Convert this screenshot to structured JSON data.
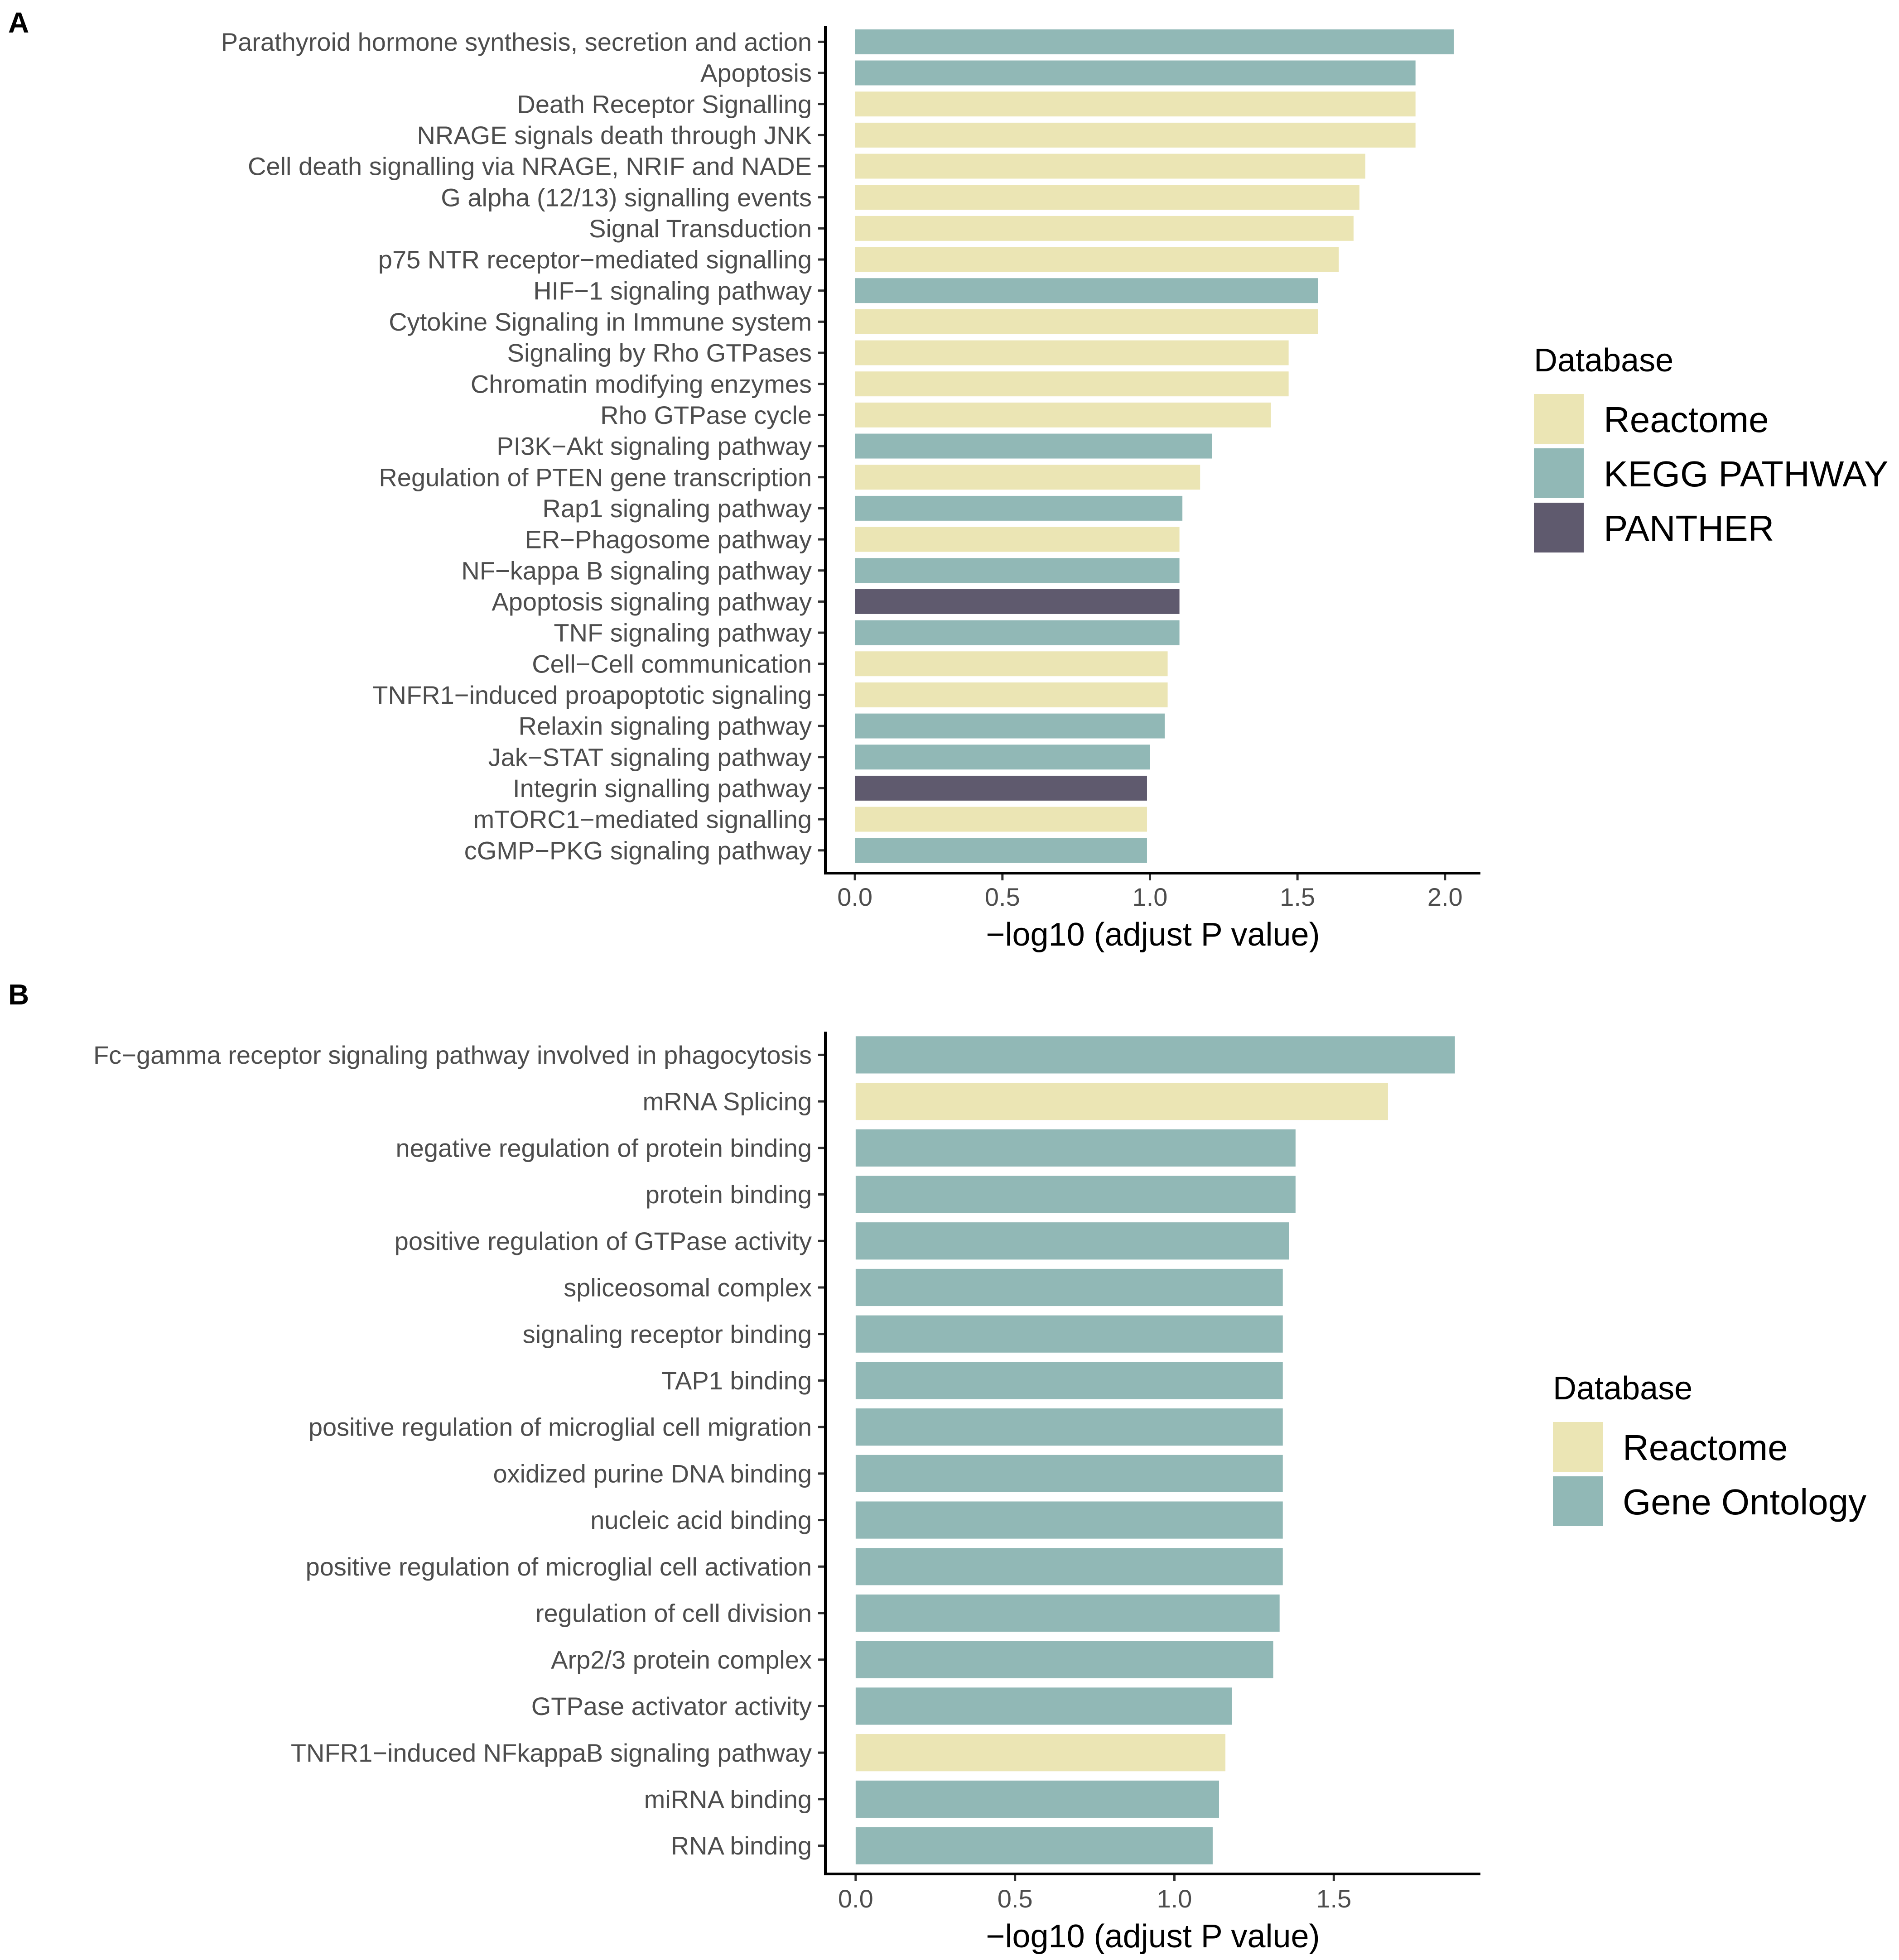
{
  "colors": {
    "Reactome": "#ebe5b4",
    "KEGG PATHWAY": "#91b8b6",
    "PANTHER": "#5f5a6e",
    "Gene Ontology": "#91b8b6",
    "axis": "#000000",
    "tick_label": "#4d4d4d",
    "title": "#000000"
  },
  "chart_data": [
    {
      "type": "bar",
      "orientation": "horizontal",
      "panel_label": "A",
      "xlabel": "−log10 (adjust P value)",
      "xlim": [
        -0.1,
        2.12
      ],
      "xticks": [
        0.0,
        0.5,
        1.0,
        1.5,
        2.0
      ],
      "xtick_labels": [
        "0.0",
        "0.5",
        "1.0",
        "1.5",
        "2.0"
      ],
      "legend_title": "Database",
      "legend_entries": [
        "Reactome",
        "KEGG PATHWAY",
        "PANTHER"
      ],
      "legend_position": "right",
      "categories": [
        "Parathyroid hormone synthesis, secretion and action",
        "Apoptosis",
        "Death Receptor Signalling",
        "NRAGE signals death through JNK",
        "Cell death signalling via NRAGE, NRIF and NADE",
        "G alpha (12/13) signalling events",
        "Signal Transduction",
        "p75 NTR receptor−mediated signalling",
        "HIF−1 signaling pathway",
        "Cytokine Signaling in Immune system",
        "Signaling by Rho GTPases",
        "Chromatin modifying enzymes",
        "Rho GTPase cycle",
        "PI3K−Akt signaling pathway",
        "Regulation of PTEN gene transcription",
        "Rap1 signaling pathway",
        "ER−Phagosome pathway",
        "NF−kappa B signaling pathway",
        "Apoptosis signaling pathway",
        "TNF signaling pathway",
        "Cell−Cell communication",
        "TNFR1−induced proapoptotic signaling",
        "Relaxin signaling pathway",
        "Jak−STAT signaling pathway",
        "Integrin signalling pathway",
        "mTORC1−mediated signalling",
        "cGMP−PKG signaling pathway"
      ],
      "values": [
        2.03,
        1.9,
        1.9,
        1.9,
        1.73,
        1.71,
        1.69,
        1.64,
        1.57,
        1.57,
        1.47,
        1.47,
        1.41,
        1.21,
        1.17,
        1.11,
        1.1,
        1.1,
        1.1,
        1.1,
        1.06,
        1.06,
        1.05,
        1.0,
        0.99,
        0.99,
        0.99
      ],
      "databases": [
        "KEGG PATHWAY",
        "KEGG PATHWAY",
        "Reactome",
        "Reactome",
        "Reactome",
        "Reactome",
        "Reactome",
        "Reactome",
        "KEGG PATHWAY",
        "Reactome",
        "Reactome",
        "Reactome",
        "Reactome",
        "KEGG PATHWAY",
        "Reactome",
        "KEGG PATHWAY",
        "Reactome",
        "KEGG PATHWAY",
        "PANTHER",
        "KEGG PATHWAY",
        "Reactome",
        "Reactome",
        "KEGG PATHWAY",
        "KEGG PATHWAY",
        "PANTHER",
        "Reactome",
        "KEGG PATHWAY"
      ]
    },
    {
      "type": "bar",
      "orientation": "horizontal",
      "panel_label": "B",
      "xlabel": "−log10 (adjust P value)",
      "xlim": [
        -0.095,
        1.96
      ],
      "xticks": [
        0.0,
        0.5,
        1.0,
        1.5
      ],
      "xtick_labels": [
        "0.0",
        "0.5",
        "1.0",
        "1.5"
      ],
      "legend_title": "Database",
      "legend_entries": [
        "Reactome",
        "Gene Ontology"
      ],
      "legend_position": "right",
      "categories": [
        "Fc−gamma receptor signaling pathway involved in phagocytosis",
        "mRNA Splicing",
        "negative regulation of protein binding",
        "protein binding",
        "positive regulation of GTPase activity",
        "spliceosomal complex",
        "signaling receptor binding",
        "TAP1 binding",
        "positive regulation of microglial cell migration",
        "oxidized purine DNA binding",
        "nucleic acid binding",
        "positive regulation of microglial cell activation",
        "regulation of cell division",
        "Arp2/3 protein complex",
        "GTPase activator activity",
        "TNFR1−induced NFkappaB signaling pathway",
        "miRNA binding",
        "RNA binding"
      ],
      "values": [
        1.88,
        1.67,
        1.38,
        1.38,
        1.36,
        1.34,
        1.34,
        1.34,
        1.34,
        1.34,
        1.34,
        1.34,
        1.33,
        1.31,
        1.18,
        1.16,
        1.14,
        1.12
      ],
      "databases": [
        "Gene Ontology",
        "Reactome",
        "Gene Ontology",
        "Gene Ontology",
        "Gene Ontology",
        "Gene Ontology",
        "Gene Ontology",
        "Gene Ontology",
        "Gene Ontology",
        "Gene Ontology",
        "Gene Ontology",
        "Gene Ontology",
        "Gene Ontology",
        "Gene Ontology",
        "Gene Ontology",
        "Reactome",
        "Gene Ontology",
        "Gene Ontology"
      ]
    }
  ]
}
